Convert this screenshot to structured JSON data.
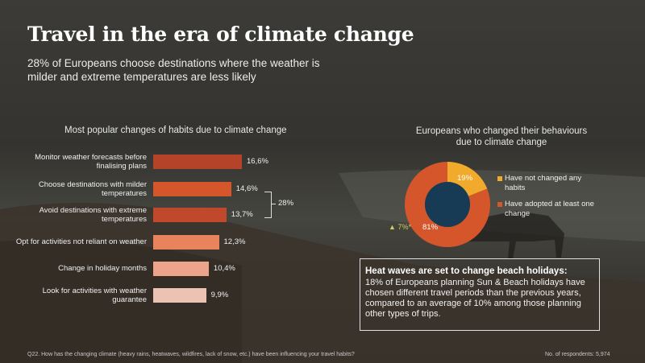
{
  "title": "Travel in the era of climate change",
  "subtitle": "28% of Europeans choose destinations where the weather is milder and extreme temperatures are less likely",
  "colors": {
    "bar_1": "#b5432a",
    "bar_2": "#d4562a",
    "bar_3": "#c0482b",
    "bar_4": "#e8845c",
    "bar_5": "#eca48a",
    "bar_6": "#ecc3b2",
    "donut_not_changed": "#f2aa2c",
    "donut_adopted": "#d4562a",
    "donut_center": "#173b55"
  },
  "chart_data": [
    {
      "type": "bar",
      "orientation": "horizontal",
      "title": "Most popular changes of habits due to climate change",
      "categories": [
        "Monitor weather forecasts before finalising plans",
        "Choose destinations with milder temperatures",
        "Avoid destinations with extreme temperatures",
        "Opt for activities not reliant on weather",
        "Change in holiday months",
        "Look for activities with weather guarantee"
      ],
      "values": [
        16.6,
        14.6,
        13.7,
        12.3,
        10.4,
        9.9
      ],
      "value_labels": [
        "16,6%",
        "14,6%",
        "13,7%",
        "12,3%",
        "10,4%",
        "9,9%"
      ],
      "group_annotation": "28%",
      "xlim": [
        0,
        20
      ]
    },
    {
      "type": "pie",
      "title": "Europeans  who changed their behaviours due to climate change",
      "labels": [
        "Have not changed any habits",
        "Have adopted at least one change"
      ],
      "values": [
        19,
        81
      ],
      "value_labels": [
        "19%",
        "81%"
      ],
      "side_note": "7%*"
    }
  ],
  "callout": {
    "heading": "Heat waves are set to change beach holidays:",
    "body": "18% of Europeans planning Sun & Beach holidays have chosen different travel periods than the previous years, compared to an average of 10% among those planning other types of trips."
  },
  "footnote": "Q22. How has the changing climate (heavy rains, heatwaves, wildfires, lack of snow, etc.) have been influencing your travel habits?",
  "respondents": "No. of respondents: 5,974"
}
